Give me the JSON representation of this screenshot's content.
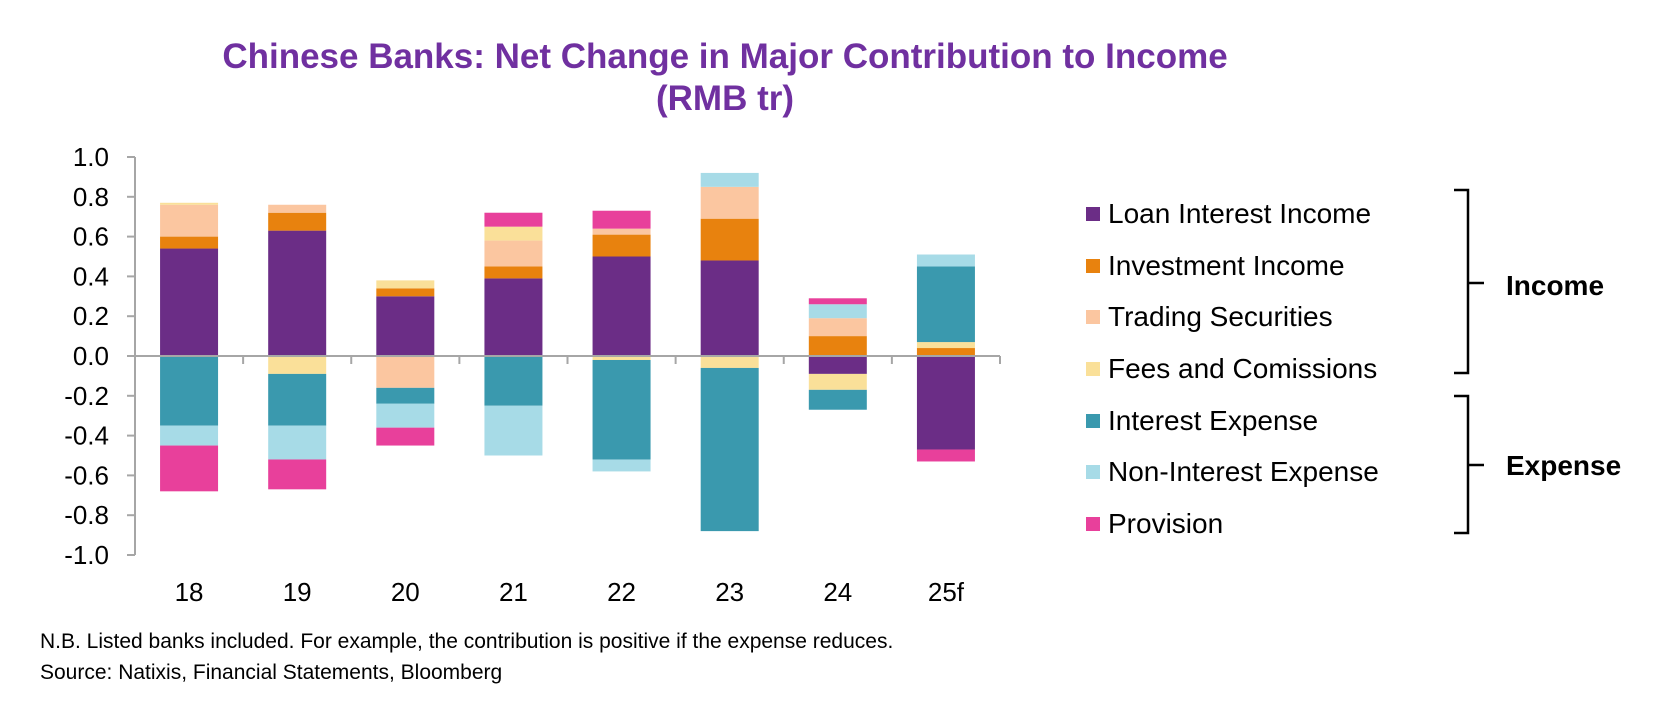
{
  "chart_data": {
    "type": "bar",
    "stacked": true,
    "title": "Chinese Banks: Net Change in Major Contribution to Income",
    "subtitle": "(RMB tr)",
    "xlabel": "",
    "ylabel": "",
    "ylim": [
      -1.0,
      1.0
    ],
    "yticks": [
      "1.0",
      "0.8",
      "0.6",
      "0.4",
      "0.2",
      "0.0",
      "-0.2",
      "-0.4",
      "-0.6",
      "-0.8",
      "-1.0"
    ],
    "categories": [
      "18",
      "19",
      "20",
      "21",
      "22",
      "23",
      "24",
      "25f"
    ],
    "series": [
      {
        "name": "Loan Interest Income",
        "color": "#6b2d86",
        "values": [
          0.54,
          0.63,
          0.3,
          0.39,
          0.5,
          0.48,
          -0.09,
          -0.47
        ]
      },
      {
        "name": "Investment Income",
        "color": "#e8820e",
        "values": [
          0.06,
          0.09,
          0.04,
          0.06,
          0.11,
          0.21,
          0.1,
          0.04
        ]
      },
      {
        "name": "Trading Securities",
        "color": "#fbc6a0",
        "values": [
          0.16,
          0.04,
          -0.16,
          0.13,
          0.03,
          0.16,
          0.09,
          0.0
        ]
      },
      {
        "name": "Fees and Comissions",
        "color": "#fae099",
        "values": [
          0.01,
          -0.09,
          0.04,
          0.07,
          -0.02,
          -0.06,
          -0.08,
          0.03
        ]
      },
      {
        "name": "Interest Expense",
        "color": "#3a99ae",
        "values": [
          -0.35,
          -0.26,
          -0.08,
          -0.25,
          -0.5,
          -0.82,
          -0.1,
          0.38
        ]
      },
      {
        "name": "Non-Interest Expense",
        "color": "#a7dbe7",
        "values": [
          -0.1,
          -0.17,
          -0.12,
          -0.25,
          -0.06,
          0.07,
          0.07,
          0.06
        ]
      },
      {
        "name": "Provision",
        "color": "#e8409b",
        "values": [
          -0.23,
          -0.15,
          -0.09,
          0.07,
          0.09,
          0.0,
          0.03,
          -0.06
        ]
      }
    ],
    "legend_groups": [
      {
        "label": "Income",
        "series": [
          "Loan Interest Income",
          "Investment Income",
          "Trading Securities",
          "Fees and Comissions"
        ]
      },
      {
        "label": "Expense",
        "series": [
          "Interest Expense",
          "Non-Interest Expense",
          "Provision"
        ]
      }
    ],
    "legend_position": "right"
  },
  "footnote": "N.B. Listed banks included. For example, the contribution is positive if the expense reduces.",
  "source": "Source: Natixis, Financial Statements, Bloomberg"
}
